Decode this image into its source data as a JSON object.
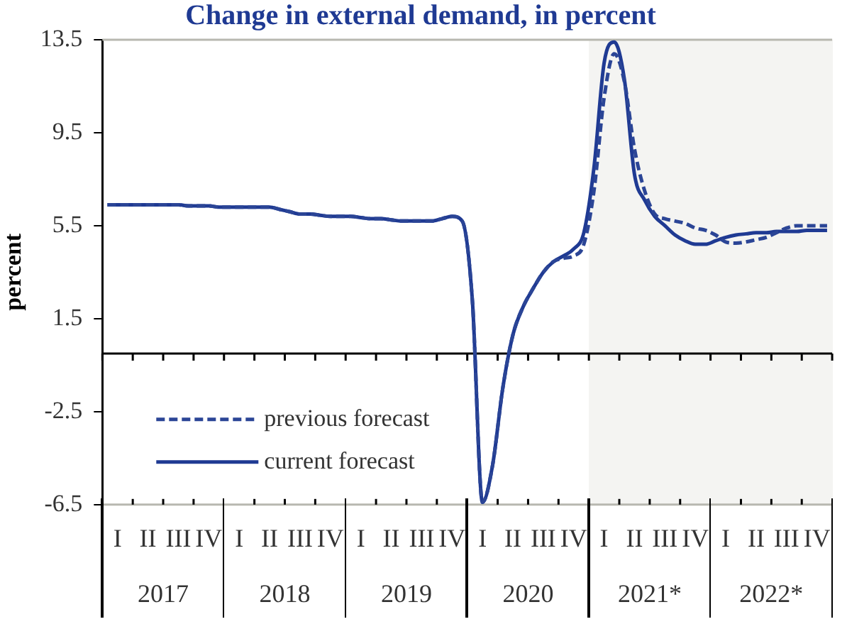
{
  "chart_data": {
    "type": "line",
    "title": "Change in external demand, in percent",
    "ylabel": "percent",
    "categories": [
      null,
      "I",
      null,
      null,
      "II",
      null,
      null,
      "III",
      null,
      null,
      "IV",
      null,
      null,
      "I",
      null,
      null,
      "II",
      null,
      null,
      "III",
      null,
      null,
      "IV",
      null,
      null,
      "I",
      null,
      null,
      "II",
      null,
      null,
      "III",
      null,
      null,
      "IV",
      null,
      null,
      "I",
      null,
      null,
      "II",
      null,
      null,
      "III",
      null,
      null,
      "IV",
      null,
      null,
      "I",
      null,
      null,
      "II",
      null,
      null,
      "III",
      null,
      null,
      "IV",
      null,
      null,
      "I",
      null,
      null,
      "II",
      null,
      null,
      "III",
      null,
      null,
      "IV",
      null
    ],
    "ylim": [
      -6.5,
      13.5
    ],
    "yticks": [
      -6.5,
      -2.5,
      1.5,
      5.5,
      9.5,
      13.5
    ],
    "grid": false,
    "legend": "bottom left",
    "marker": "none",
    "ref_lines": [
      {
        "axis": "y",
        "value": 0,
        "color": "#000000"
      }
    ],
    "annotations": [
      "2017",
      "2018",
      "2019",
      "2020",
      "2021*",
      "2022*"
    ],
    "series": [
      {
        "name": "previous forecast",
        "color": "#2b4596",
        "line_style": "dashed",
        "values": [
          6.4,
          6.4,
          6.4,
          6.4,
          6.4,
          6.4,
          6.4,
          6.4,
          6.35,
          6.35,
          6.35,
          6.3,
          6.3,
          6.3,
          6.3,
          6.3,
          6.3,
          6.2,
          6.1,
          6.0,
          6.0,
          5.95,
          5.9,
          5.9,
          5.9,
          5.85,
          5.8,
          5.8,
          5.75,
          5.7,
          5.7,
          5.7,
          5.7,
          5.8,
          5.9,
          5.7,
          2.3,
          -6.4,
          -4.8,
          -1.5,
          0.8,
          2.0,
          2.8,
          3.5,
          3.95,
          4.1,
          4.2,
          4.7,
          7.0,
          11.0,
          12.9,
          11.7,
          8.8,
          7.0,
          6.0,
          5.8,
          5.7,
          5.6,
          5.4,
          5.3,
          5.1,
          4.8,
          4.75,
          4.8,
          4.9,
          5.0,
          5.2,
          5.4,
          5.5,
          5.5,
          5.5,
          5.5
        ]
      },
      {
        "name": "current forecast",
        "color": "#1f3a93",
        "line_style": "solid",
        "values": [
          6.4,
          6.4,
          6.4,
          6.4,
          6.4,
          6.4,
          6.4,
          6.4,
          6.35,
          6.35,
          6.35,
          6.3,
          6.3,
          6.3,
          6.3,
          6.3,
          6.3,
          6.2,
          6.1,
          6.0,
          6.0,
          5.95,
          5.9,
          5.9,
          5.9,
          5.85,
          5.8,
          5.8,
          5.75,
          5.7,
          5.7,
          5.7,
          5.7,
          5.8,
          5.9,
          5.7,
          2.3,
          -6.4,
          -4.8,
          -1.5,
          0.8,
          2.0,
          2.8,
          3.5,
          3.95,
          4.2,
          4.5,
          5.2,
          8.0,
          12.5,
          13.4,
          11.8,
          7.7,
          6.6,
          5.9,
          5.5,
          5.1,
          4.85,
          4.7,
          4.7,
          4.85,
          5.0,
          5.1,
          5.15,
          5.2,
          5.2,
          5.25,
          5.25,
          5.25,
          5.3,
          5.3,
          5.3
        ]
      }
    ]
  }
}
